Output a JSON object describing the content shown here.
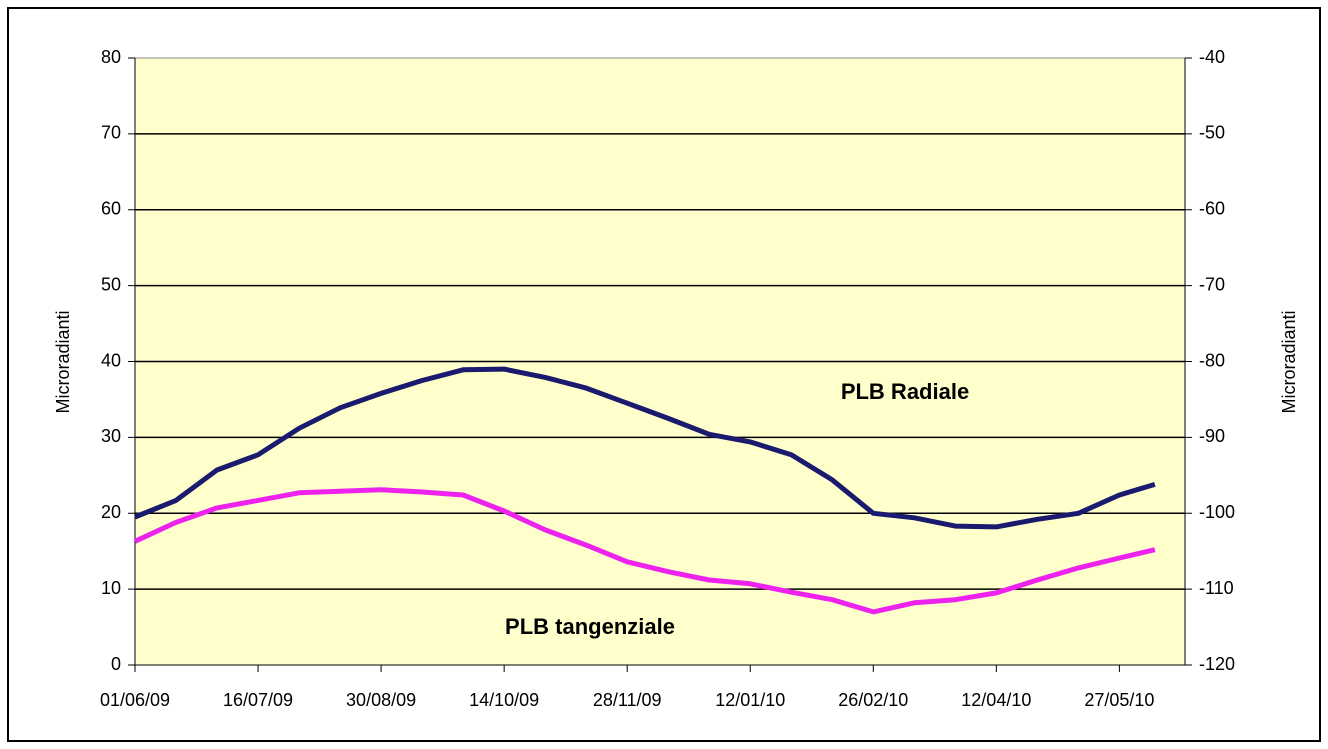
{
  "chart_data": {
    "type": "line",
    "y_label": "Microradianti",
    "y2_label": "Microradianti",
    "annotations": [
      "PLB Radiale",
      "PLB tangenziale"
    ],
    "x": [
      "01/06/09",
      "16/06/09",
      "01/07/09",
      "16/07/09",
      "31/07/09",
      "15/08/09",
      "30/08/09",
      "14/09/09",
      "29/09/09",
      "14/10/09",
      "29/10/09",
      "13/11/09",
      "28/11/09",
      "13/12/09",
      "28/12/09",
      "12/01/10",
      "27/01/10",
      "11/02/10",
      "26/02/10",
      "13/03/10",
      "28/03/10",
      "12/04/10",
      "27/04/10",
      "12/05/10",
      "27/05/10",
      "09/06/10"
    ],
    "series": [
      {
        "name": "PLB Radiale",
        "color": "#1a1a6e",
        "values": [
          19.5,
          21.7,
          25.7,
          27.7,
          31.2,
          33.9,
          35.8,
          37.5,
          38.9,
          39.0,
          37.9,
          36.5,
          34.5,
          32.5,
          30.4,
          29.4,
          27.7,
          24.4,
          20.0,
          19.4,
          18.3,
          18.2,
          19.2,
          20.0,
          22.4,
          23.8
        ]
      },
      {
        "name": "PLB tangenziale",
        "color": "#ee22ee",
        "values": [
          16.3,
          18.8,
          20.7,
          21.7,
          22.7,
          22.9,
          23.1,
          22.8,
          22.4,
          20.3,
          17.8,
          15.8,
          13.6,
          12.3,
          11.2,
          10.7,
          9.6,
          8.6,
          7.0,
          8.2,
          8.6,
          9.5,
          11.2,
          12.8,
          14.1,
          15.2
        ]
      }
    ],
    "xlim": [
      "01/06/09",
      "20/06/10"
    ],
    "xticks": [
      "01/06/09",
      "16/07/09",
      "30/08/09",
      "14/10/09",
      "28/11/09",
      "12/01/10",
      "26/02/10",
      "12/04/10",
      "27/05/10"
    ],
    "ylim": [
      0,
      80
    ],
    "yticks": [
      0,
      10,
      20,
      30,
      40,
      50,
      60,
      70,
      80
    ],
    "y2lim": [
      -120,
      -40
    ],
    "y2ticks": [
      -120,
      -110,
      -100,
      -90,
      -80,
      -70,
      -60,
      -50,
      -40
    ],
    "grid": true,
    "background": "#ffffcc"
  }
}
